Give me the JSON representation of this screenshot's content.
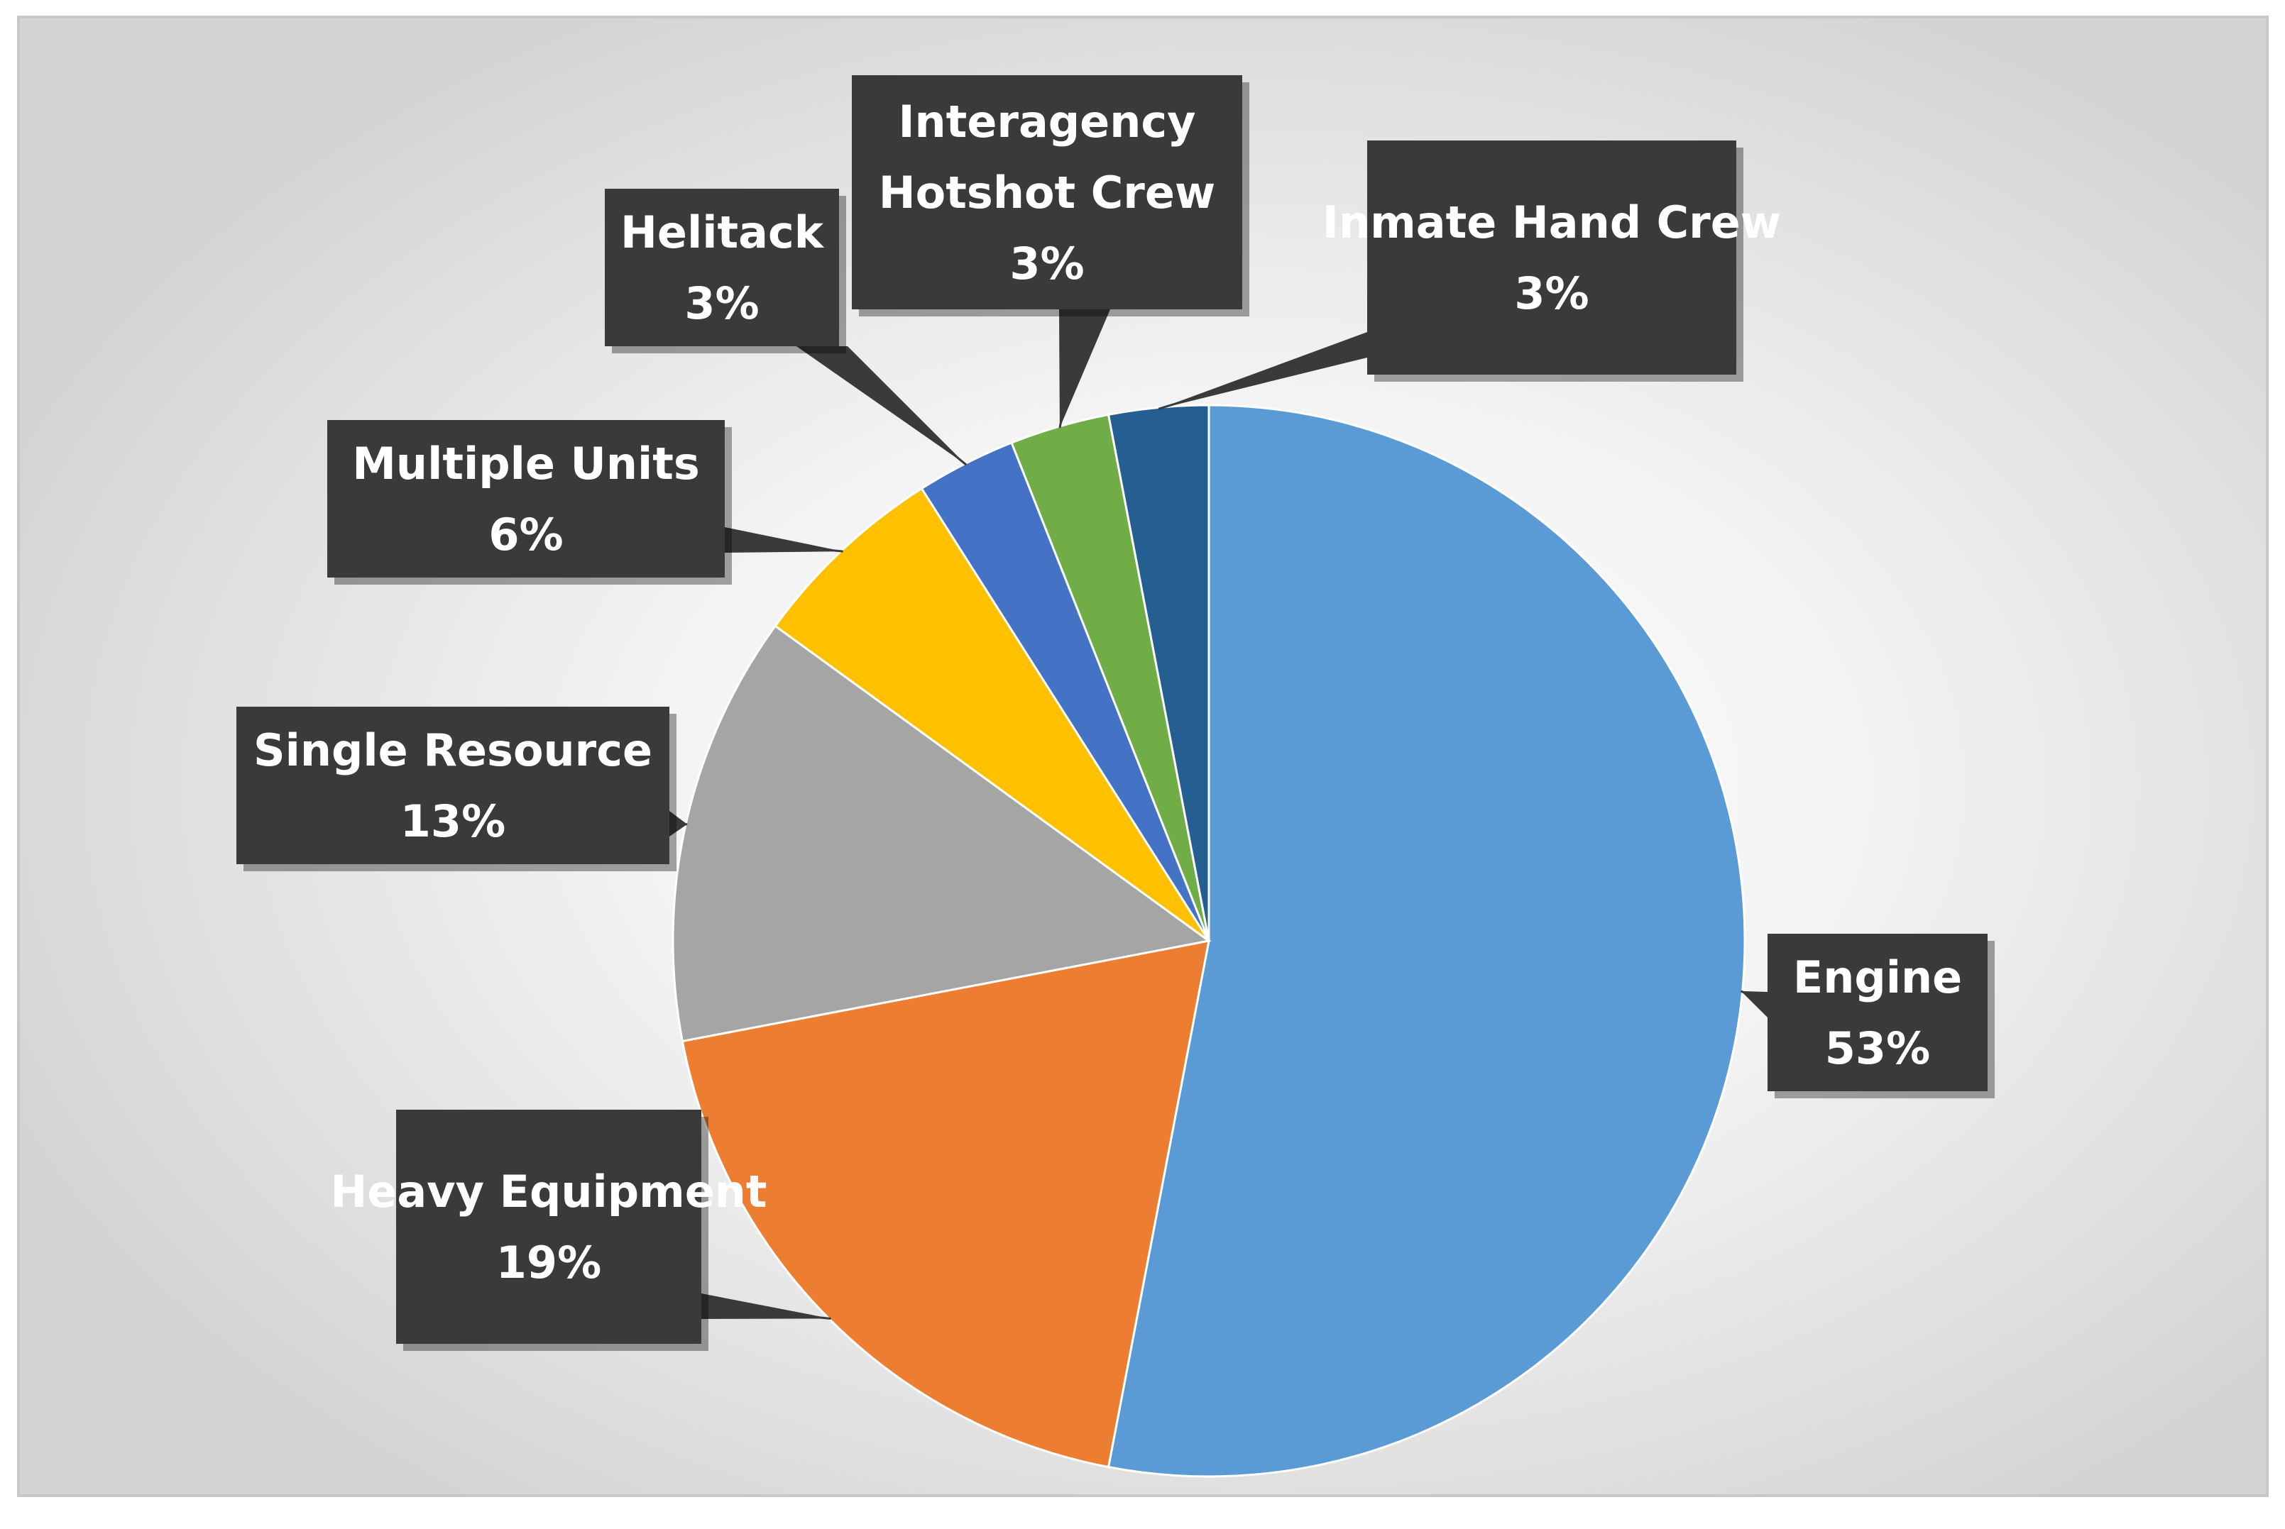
{
  "chart_data": {
    "type": "pie",
    "start_angle_deg": 0,
    "direction": "clockwise",
    "legend": "none",
    "slices": [
      {
        "name": "Engine",
        "value": 53,
        "label": "53%",
        "color": "#5B9BD5"
      },
      {
        "name": "Heavy Equipment",
        "value": 19,
        "label": "19%",
        "color": "#ED7D31"
      },
      {
        "name": "Single Resource",
        "value": 13,
        "label": "13%",
        "color": "#A5A5A5"
      },
      {
        "name": "Multiple Units",
        "value": 6,
        "label": "6%",
        "color": "#FFC000"
      },
      {
        "name": "Helitack",
        "value": 3,
        "label": "3%",
        "color": "#4472C4"
      },
      {
        "name": "Interagency Hotshot Crew",
        "value": 3,
        "label": "3%",
        "color": "#70AD47"
      },
      {
        "name": "Inmate Hand Crew",
        "value": 3,
        "label": "3%",
        "color": "#255E91"
      }
    ]
  }
}
